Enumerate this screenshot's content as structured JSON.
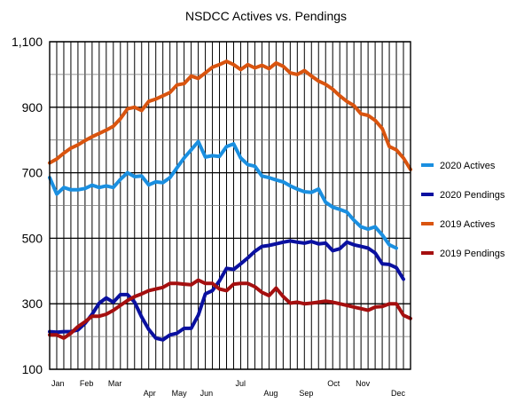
{
  "chart_data": {
    "type": "line",
    "title": "NSDCC Actives vs. Pendings",
    "xlabel": "",
    "ylabel": "",
    "ylim": [
      100,
      1100
    ],
    "yticks": [
      100,
      300,
      500,
      700,
      900,
      1100
    ],
    "ytick_labels": [
      "100",
      "300",
      "500",
      "700",
      "900",
      "1,100"
    ],
    "grid": true,
    "legend_position": "right",
    "x_count": 52,
    "x_month_labels": [
      {
        "label": "Jan",
        "week": 0
      },
      {
        "label": "Feb",
        "week": 4
      },
      {
        "label": "Mar",
        "week": 8
      },
      {
        "label": "Apr",
        "week": 13
      },
      {
        "label": "May",
        "week": 17
      },
      {
        "label": "Jun",
        "week": 21
      },
      {
        "label": "Jul",
        "week": 26
      },
      {
        "label": "Aug",
        "week": 30
      },
      {
        "label": "Sep",
        "week": 35
      },
      {
        "label": "Oct",
        "week": 39
      },
      {
        "label": "Nov",
        "week": 43
      },
      {
        "label": "Dec",
        "week": 48
      }
    ],
    "series": [
      {
        "name": "2020 Actives",
        "color": "#1a8fe0",
        "values": [
          685,
          635,
          655,
          648,
          648,
          652,
          662,
          655,
          660,
          655,
          680,
          700,
          688,
          690,
          663,
          672,
          670,
          685,
          715,
          745,
          770,
          795,
          748,
          752,
          750,
          780,
          788,
          745,
          725,
          720,
          690,
          685,
          678,
          672,
          660,
          650,
          642,
          640,
          650,
          610,
          595,
          588,
          580,
          555,
          535,
          528,
          535,
          510,
          480,
          470
        ]
      },
      {
        "name": "2020 Pendings",
        "color": "#0a10a0",
        "values": [
          215,
          213,
          215,
          215,
          220,
          240,
          268,
          302,
          318,
          305,
          328,
          328,
          305,
          260,
          222,
          195,
          190,
          205,
          210,
          225,
          225,
          265,
          330,
          340,
          370,
          408,
          405,
          422,
          440,
          460,
          475,
          478,
          483,
          488,
          492,
          488,
          485,
          490,
          483,
          485,
          462,
          468,
          488,
          480,
          475,
          470,
          455,
          422,
          420,
          410,
          375
        ]
      },
      {
        "name": "2019 Actives",
        "color": "#d9540f",
        "values": [
          730,
          742,
          760,
          775,
          785,
          798,
          810,
          820,
          830,
          842,
          865,
          895,
          900,
          890,
          918,
          925,
          935,
          945,
          968,
          972,
          995,
          988,
          1005,
          1022,
          1030,
          1040,
          1030,
          1015,
          1030,
          1020,
          1028,
          1018,
          1035,
          1025,
          1005,
          1000,
          1012,
          995,
          980,
          970,
          955,
          935,
          918,
          905,
          880,
          875,
          860,
          835,
          780,
          770,
          745,
          710
        ]
      },
      {
        "name": "2019 Pendings",
        "color": "#a50f0f",
        "values": [
          205,
          205,
          195,
          210,
          230,
          245,
          262,
          262,
          268,
          280,
          295,
          310,
          322,
          330,
          340,
          345,
          350,
          362,
          362,
          360,
          358,
          372,
          362,
          362,
          345,
          340,
          360,
          362,
          362,
          352,
          335,
          325,
          348,
          322,
          302,
          305,
          300,
          302,
          305,
          308,
          305,
          300,
          295,
          290,
          285,
          280,
          290,
          292,
          300,
          300,
          265,
          255
        ]
      }
    ]
  }
}
